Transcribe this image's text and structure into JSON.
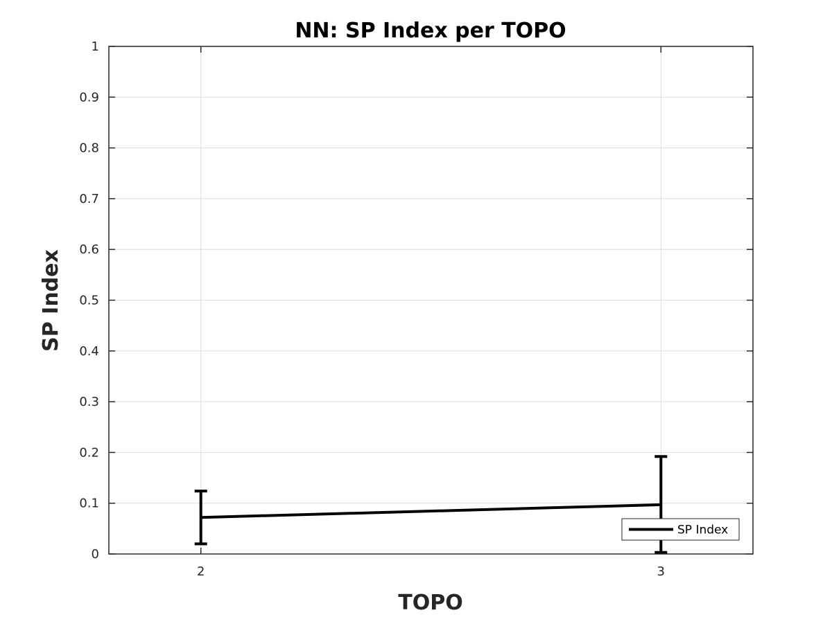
{
  "chart_data": {
    "type": "line",
    "title": "NN: SP Index per TOPO",
    "xlabel": "TOPO",
    "ylabel": "SP Index",
    "x": [
      2,
      3
    ],
    "xlim": [
      1.8,
      3.2
    ],
    "ylim": [
      0,
      1
    ],
    "xticks": [
      2,
      3
    ],
    "yticks": [
      0,
      0.1,
      0.2,
      0.3,
      0.4,
      0.5,
      0.6,
      0.7,
      0.8,
      0.9,
      1
    ],
    "ytick_labels": [
      "0",
      "0.1",
      "0.2",
      "0.3",
      "0.4",
      "0.5",
      "0.6",
      "0.7",
      "0.8",
      "0.9",
      "1"
    ],
    "xtick_labels": [
      "2",
      "3"
    ],
    "grid": true,
    "legend_position": "bottom-right",
    "series": [
      {
        "name": "SP Index",
        "values": [
          0.072,
          0.097
        ],
        "error_lower": [
          0.02,
          0.003
        ],
        "error_upper": [
          0.124,
          0.192
        ],
        "color": "#000000"
      }
    ]
  }
}
